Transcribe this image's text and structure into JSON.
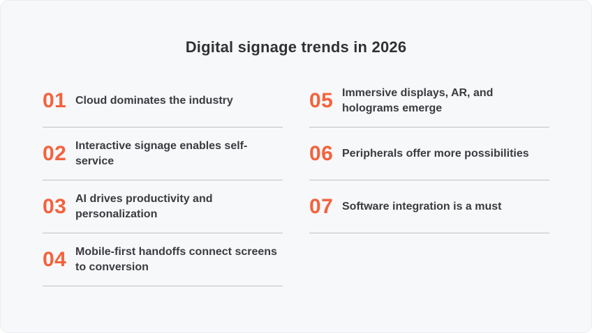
{
  "title": "Digital signage trends in 2026",
  "colors": {
    "background": "#F7F8FA",
    "accent": "#F4623D",
    "text": "#3B3B3F",
    "title": "#323234",
    "divider": "#C1C1C6"
  },
  "columns": {
    "left": [
      {
        "number": "01",
        "label": "Cloud dominates the industry"
      },
      {
        "number": "02",
        "label": "Interactive signage enables self-service"
      },
      {
        "number": "03",
        "label": "AI drives productivity and personalization"
      },
      {
        "number": "04",
        "label": "Mobile-first handoffs connect screens to conversion"
      }
    ],
    "right": [
      {
        "number": "05",
        "label": "Immersive displays, AR, and holograms emerge"
      },
      {
        "number": "06",
        "label": "Peripherals offer more possibilities"
      },
      {
        "number": "07",
        "label": "Software integration is a must"
      }
    ]
  }
}
